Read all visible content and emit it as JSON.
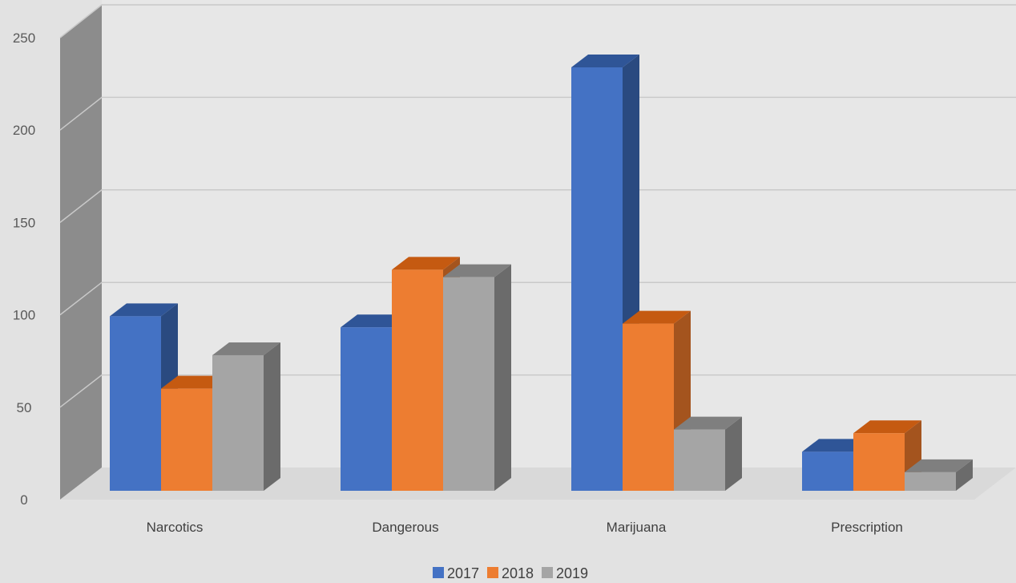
{
  "chart_data": {
    "type": "bar",
    "style": "3d-clustered-column",
    "categories": [
      "Narcotics",
      "Dangerous",
      "Marijuana",
      "Prescription"
    ],
    "series": [
      {
        "name": "2017",
        "values": [
          94,
          88,
          228,
          21
        ],
        "color": "#4472c4",
        "side_color": "#2a4a80",
        "top_color": "#2f5597"
      },
      {
        "name": "2018",
        "values": [
          55,
          119,
          90,
          31
        ],
        "color": "#ed7d31",
        "side_color": "#a4541e",
        "top_color": "#c55a11"
      },
      {
        "name": "2019",
        "values": [
          73,
          115,
          33,
          10
        ],
        "color": "#a5a5a5",
        "side_color": "#6b6b6b",
        "top_color": "#7f7f7f"
      }
    ],
    "y_ticks": [
      "0",
      "50",
      "100",
      "150",
      "200",
      "250"
    ],
    "ylim": [
      0,
      250
    ],
    "grid": true,
    "legend_position": "bottom",
    "colors": {
      "back_wall": "#e7e7e7",
      "side_wall": "#8c8c8c",
      "floor": "#d9d9d9",
      "gridline": "#c9c9c9"
    }
  }
}
